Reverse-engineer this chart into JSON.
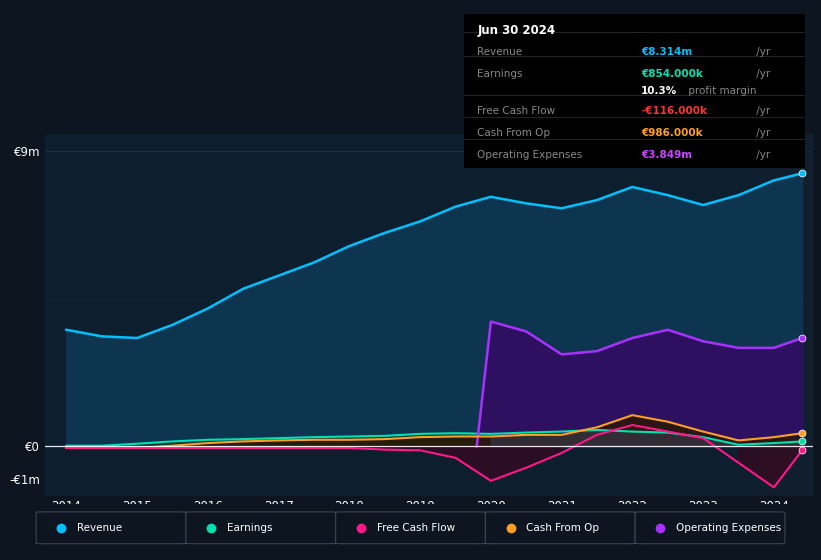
{
  "bg_color": "#0c1520",
  "plot_bg_color": "#0d1e2e",
  "years": [
    2014.0,
    2014.5,
    2015.0,
    2015.5,
    2016.0,
    2016.5,
    2017.0,
    2017.5,
    2018.0,
    2018.5,
    2019.0,
    2019.5,
    2020.0,
    2020.5,
    2021.0,
    2021.5,
    2022.0,
    2022.5,
    2023.0,
    2023.5,
    2024.0,
    2024.4
  ],
  "revenue": [
    3.55,
    3.35,
    3.3,
    3.7,
    4.2,
    4.8,
    5.2,
    5.6,
    6.1,
    6.5,
    6.85,
    7.3,
    7.6,
    7.4,
    7.25,
    7.5,
    7.9,
    7.65,
    7.35,
    7.65,
    8.1,
    8.314
  ],
  "earnings": [
    0.02,
    0.02,
    0.08,
    0.15,
    0.2,
    0.22,
    0.25,
    0.28,
    0.3,
    0.32,
    0.38,
    0.4,
    0.38,
    0.42,
    0.45,
    0.5,
    0.45,
    0.42,
    0.28,
    0.05,
    0.1,
    0.15
  ],
  "free_cash_flow": [
    -0.05,
    -0.05,
    -0.05,
    -0.05,
    -0.05,
    -0.05,
    -0.05,
    -0.05,
    -0.05,
    -0.1,
    -0.12,
    -0.35,
    -1.05,
    -0.65,
    -0.2,
    0.35,
    0.65,
    0.45,
    0.25,
    -0.5,
    -1.25,
    -0.12
  ],
  "cash_from_op": [
    -0.05,
    -0.05,
    -0.05,
    0.02,
    0.1,
    0.15,
    0.18,
    0.2,
    0.2,
    0.22,
    0.28,
    0.3,
    0.3,
    0.35,
    0.35,
    0.58,
    0.95,
    0.75,
    0.45,
    0.18,
    0.28,
    0.4
  ],
  "op_expenses_x": [
    2019.8,
    2020.0,
    2020.5,
    2021.0,
    2021.5,
    2022.0,
    2022.5,
    2023.0,
    2023.5,
    2024.0,
    2024.4
  ],
  "op_expenses_y": [
    0.0,
    3.8,
    3.5,
    2.8,
    2.9,
    3.3,
    3.55,
    3.2,
    3.0,
    3.0,
    3.3
  ],
  "ylim": [
    -1.5,
    9.5
  ],
  "xlim": [
    2013.7,
    2024.55
  ],
  "ytick_positions": [
    -1.0,
    0.0,
    9.0
  ],
  "ytick_labels": [
    "-€1m",
    "€0",
    "€9m"
  ],
  "xticks": [
    2014,
    2015,
    2016,
    2017,
    2018,
    2019,
    2020,
    2021,
    2022,
    2023,
    2024
  ],
  "revenue_color": "#00c0ff",
  "revenue_fill": "#0d3550",
  "earnings_color": "#00e0b0",
  "earnings_fill": "#0a3535",
  "fcf_color": "#ff1888",
  "fcf_fill": "#3a0820",
  "cashop_color": "#ffa020",
  "cashop_fill": "#2a1800",
  "opex_color": "#aa30ff",
  "opex_fill": "#2e1060",
  "gray_fill": "#3a4555",
  "legend_items": [
    {
      "label": "Revenue",
      "color": "#00c0ff"
    },
    {
      "label": "Earnings",
      "color": "#00e0b0"
    },
    {
      "label": "Free Cash Flow",
      "color": "#ff1888"
    },
    {
      "label": "Cash From Op",
      "color": "#ffa020"
    },
    {
      "label": "Operating Expenses",
      "color": "#aa30ff"
    }
  ]
}
